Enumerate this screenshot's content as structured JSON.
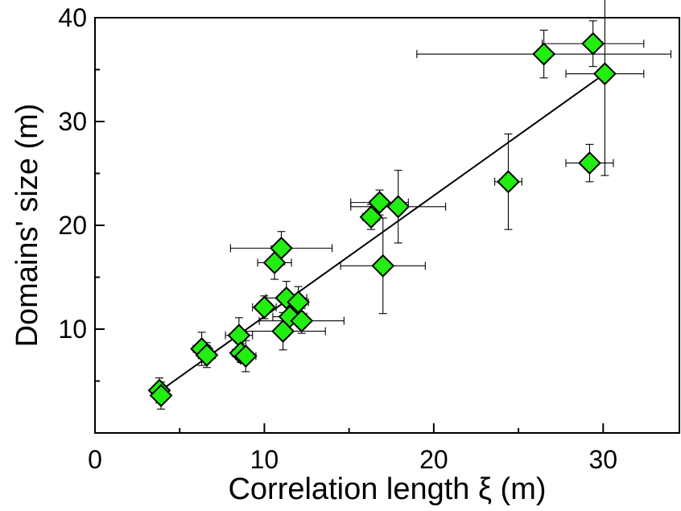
{
  "chart_data": {
    "type": "scatter",
    "title": "",
    "xlabel": "Correlation length ξ  (m)",
    "ylabel": "Domains' size (m)",
    "xlim": [
      0,
      34.5
    ],
    "ylim": [
      0,
      40
    ],
    "xticks": [
      0,
      10,
      20,
      30
    ],
    "yticks": [
      10,
      20,
      30,
      40
    ],
    "grid": false,
    "legend": "none",
    "marker": "diamond",
    "marker_color": "#22ee11",
    "fit_line": {
      "x": [
        3.8,
        30
      ],
      "y": [
        4.0,
        34.5
      ]
    },
    "points": [
      {
        "x": 3.8,
        "y": 4.1,
        "xerr": 0.4,
        "yerr": 1.2
      },
      {
        "x": 3.9,
        "y": 3.6,
        "xerr": 0.4,
        "yerr": 1.3
      },
      {
        "x": 6.3,
        "y": 8.1,
        "xerr": 0.5,
        "yerr": 1.6
      },
      {
        "x": 6.6,
        "y": 7.5,
        "xerr": 0.5,
        "yerr": 1.2
      },
      {
        "x": 8.5,
        "y": 9.4,
        "xerr": 0.8,
        "yerr": 1.7
      },
      {
        "x": 8.6,
        "y": 7.7,
        "xerr": 0.5,
        "yerr": 0.9
      },
      {
        "x": 8.9,
        "y": 7.4,
        "xerr": 0.6,
        "yerr": 1.5
      },
      {
        "x": 10.0,
        "y": 12.1,
        "xerr": 0.7,
        "yerr": 1.1
      },
      {
        "x": 10.6,
        "y": 16.4,
        "xerr": 1.0,
        "yerr": 1.6
      },
      {
        "x": 11.0,
        "y": 17.8,
        "xerr": 3.0,
        "yerr": 1.6
      },
      {
        "x": 11.1,
        "y": 9.8,
        "xerr": 2.5,
        "yerr": 1.8
      },
      {
        "x": 11.3,
        "y": 13.0,
        "xerr": 1.2,
        "yerr": 1.6
      },
      {
        "x": 11.5,
        "y": 11.2,
        "xerr": 1.0,
        "yerr": 1.4
      },
      {
        "x": 12.0,
        "y": 12.6,
        "xerr": 0.6,
        "yerr": 1.5
      },
      {
        "x": 12.2,
        "y": 10.8,
        "xerr": 2.5,
        "yerr": 1.2
      },
      {
        "x": 16.3,
        "y": 20.8,
        "xerr": 0.5,
        "yerr": 1.2
      },
      {
        "x": 16.8,
        "y": 22.2,
        "xerr": 1.7,
        "yerr": 1.2
      },
      {
        "x": 17.0,
        "y": 16.1,
        "xerr": 2.5,
        "yerr": 4.6
      },
      {
        "x": 17.9,
        "y": 21.8,
        "xerr": 2.8,
        "yerr": 3.5
      },
      {
        "x": 24.4,
        "y": 24.2,
        "xerr": 0.8,
        "yerr": 4.6
      },
      {
        "x": 26.5,
        "y": 36.5,
        "xerr": 7.5,
        "yerr": 2.3
      },
      {
        "x": 29.2,
        "y": 26.0,
        "xerr": 1.4,
        "yerr": 1.8
      },
      {
        "x": 29.4,
        "y": 37.5,
        "xerr": 3.0,
        "yerr": 2.2
      },
      {
        "x": 30.1,
        "y": 34.6,
        "xerr": 2.3,
        "yerr": 9.8
      }
    ]
  }
}
